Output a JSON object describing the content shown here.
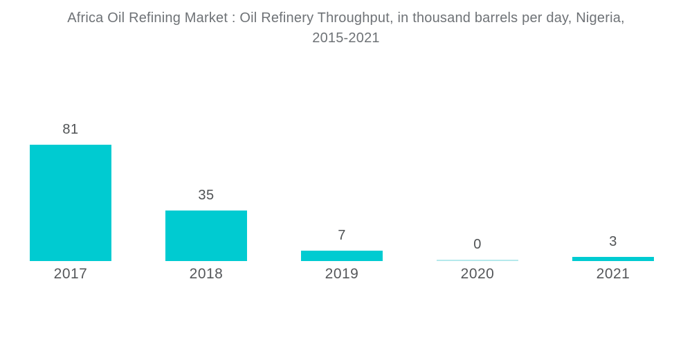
{
  "header": {
    "title_line1": "Africa Oil Refining Market : Oil Refinery Throughput, in thousand barrels per day, Nigeria,",
    "title_line2": "2015-2021",
    "title_color": "#6E7276"
  },
  "chart_data": {
    "type": "bar",
    "title": "Africa Oil Refining Market : Oil Refinery Throughput, in thousand barrels per day, Nigeria, 2015-2021",
    "categories": [
      "2017",
      "2018",
      "2019",
      "2020",
      "2021"
    ],
    "values": [
      81,
      35,
      7,
      0,
      3
    ],
    "value_labels": [
      "81",
      "35",
      "7",
      "0",
      "3"
    ],
    "xlabel": "",
    "ylabel": "",
    "ylim": [
      0,
      90
    ],
    "grid": false,
    "legend": false,
    "axes_visible": false,
    "bar_color": "#00CBD1",
    "zero_bar_color": "#B5E9EC",
    "value_label_color": "#4F5254",
    "tick_label_color": "#55575A",
    "background_color": "#FFFFFF"
  }
}
